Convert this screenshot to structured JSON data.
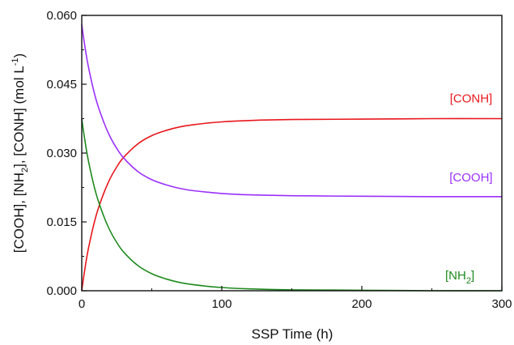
{
  "chart_data": {
    "type": "line",
    "title": "",
    "xlabel": "SSP Time (h)",
    "ylabel_parts": [
      "[COOH], [NH",
      "2",
      "], [CONH] (mol L",
      "-1",
      ")"
    ],
    "xlim": [
      0,
      300
    ],
    "ylim": [
      0,
      0.06
    ],
    "x_ticks": [
      0,
      100,
      200,
      300
    ],
    "x_tick_labels": [
      "0",
      "100",
      "200",
      "300"
    ],
    "y_ticks": [
      0,
      0.015,
      0.03,
      0.045,
      0.06
    ],
    "y_tick_labels": [
      "0.000",
      "0.015",
      "0.030",
      "0.045",
      "0.060"
    ],
    "grid": false,
    "series": [
      {
        "name": "[CONH]",
        "label_text": "[CONH]",
        "label_sub": "",
        "label_tail": "",
        "color": "#e8171c",
        "x": [
          0,
          2,
          5,
          10,
          15,
          20,
          25,
          30,
          40,
          50,
          60,
          70,
          80,
          100,
          120,
          150,
          200,
          250,
          300
        ],
        "y": [
          0.0,
          0.0043,
          0.0096,
          0.0161,
          0.0207,
          0.0243,
          0.027,
          0.0291,
          0.032,
          0.0338,
          0.0349,
          0.0357,
          0.0362,
          0.0368,
          0.0371,
          0.0373,
          0.0374,
          0.0375,
          0.0375
        ]
      },
      {
        "name": "[COOH]",
        "label_text": "[COOH]",
        "label_sub": "",
        "label_tail": "",
        "color": "#9b30ff",
        "x": [
          0,
          2,
          5,
          10,
          15,
          20,
          25,
          30,
          40,
          50,
          60,
          70,
          80,
          100,
          120,
          150,
          200,
          250,
          300
        ],
        "y": [
          0.058,
          0.0537,
          0.0484,
          0.0419,
          0.0373,
          0.0337,
          0.031,
          0.0289,
          0.026,
          0.0242,
          0.0231,
          0.0223,
          0.0218,
          0.0212,
          0.0209,
          0.0207,
          0.0206,
          0.0205,
          0.0205
        ]
      },
      {
        "name": "[NH2]",
        "label_text": "[NH",
        "label_sub": "2",
        "label_tail": "]",
        "color": "#1e8a1e",
        "x": [
          0,
          2,
          5,
          10,
          15,
          20,
          25,
          30,
          40,
          50,
          60,
          70,
          80,
          100,
          120,
          150,
          200,
          250,
          300
        ],
        "y": [
          0.0375,
          0.0332,
          0.0279,
          0.0214,
          0.0168,
          0.0132,
          0.0105,
          0.0084,
          0.0055,
          0.0037,
          0.0026,
          0.0018,
          0.0013,
          0.0007,
          0.0004,
          0.0002,
          0.0001,
          0.0,
          0.0
        ]
      }
    ]
  }
}
